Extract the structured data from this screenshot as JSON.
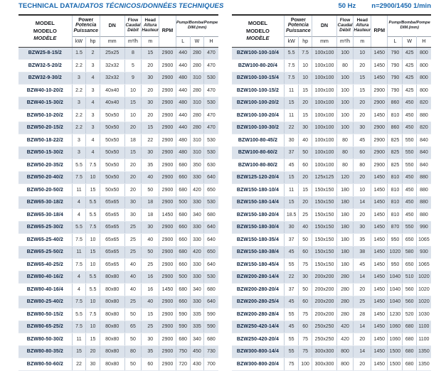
{
  "title": {
    "main": "TECHNICAL DATA/",
    "italic": "DATOS TÉCNICOS/DONNÉES TECHNIQUES"
  },
  "top_right": {
    "frequency": "50 Hz",
    "speed": "n=2900/1450 1/min"
  },
  "colors": {
    "accent_blue": "#1766ae",
    "row_shade": "#dbe2eb",
    "model_text": "#0f2440"
  },
  "header": {
    "model": [
      "MODEL",
      "MODELO",
      "MODÈLE"
    ],
    "power": [
      "Power",
      "Potencia",
      "Puissance"
    ],
    "dn": "DN",
    "flow": [
      "Flow",
      "Caudal",
      "Débit"
    ],
    "head_col": [
      "Head",
      "Altura",
      "Hauteur"
    ],
    "rpm": "RPM",
    "dim": [
      "Pump/Bomba/Pompe",
      "DIM.(mm)"
    ],
    "units": {
      "kw": "kW",
      "hp": "hp",
      "dn": "mm",
      "flow": "m³/h",
      "head": "m",
      "l": "L",
      "w": "W",
      "h": "H"
    }
  },
  "table_left": {
    "rows": [
      [
        "BZW25-8-15/2",
        "1.5",
        "2",
        "25x25",
        "8",
        "15",
        "2900",
        "440",
        "280",
        "470"
      ],
      [
        "BZW32-5-20/2",
        "2.2",
        "3",
        "32x32",
        "5",
        "20",
        "2900",
        "440",
        "280",
        "470"
      ],
      [
        "BZW32-9-30/2",
        "3",
        "4",
        "32x32",
        "9",
        "30",
        "2900",
        "480",
        "310",
        "530"
      ],
      [
        "BZW40-10-20/2",
        "2.2",
        "3",
        "40x40",
        "10",
        "20",
        "2900",
        "440",
        "280",
        "470"
      ],
      [
        "BZW40-15-30/2",
        "3",
        "4",
        "40x40",
        "15",
        "30",
        "2900",
        "480",
        "310",
        "530"
      ],
      [
        "BZW50-10-20/2",
        "2.2",
        "3",
        "50x50",
        "10",
        "20",
        "2900",
        "440",
        "280",
        "470"
      ],
      [
        "BZW50-20-15/2",
        "2.2",
        "3",
        "50x50",
        "20",
        "15",
        "2900",
        "440",
        "280",
        "470"
      ],
      [
        "BZW50-18-22/2",
        "3",
        "4",
        "50x50",
        "18",
        "22",
        "2900",
        "480",
        "310",
        "530"
      ],
      [
        "BZW50-15-30/2",
        "3",
        "4",
        "50x50",
        "15",
        "30",
        "2900",
        "480",
        "310",
        "530"
      ],
      [
        "BZW50-20-35/2",
        "5.5",
        "7.5",
        "50x50",
        "20",
        "35",
        "2900",
        "680",
        "350",
        "630"
      ],
      [
        "BZW50-20-40/2",
        "7.5",
        "10",
        "50x50",
        "20",
        "40",
        "2900",
        "660",
        "330",
        "640"
      ],
      [
        "BZW50-20-50/2",
        "11",
        "15",
        "50x50",
        "20",
        "50",
        "2900",
        "680",
        "420",
        "650"
      ],
      [
        "BZW65-30-18/2",
        "4",
        "5.5",
        "65x65",
        "30",
        "18",
        "2900",
        "500",
        "330",
        "530"
      ],
      [
        "BZW65-30-18/4",
        "4",
        "5.5",
        "65x65",
        "30",
        "18",
        "1450",
        "680",
        "340",
        "680"
      ],
      [
        "BZW65-25-30/2",
        "5.5",
        "7.5",
        "65x65",
        "25",
        "30",
        "2900",
        "660",
        "330",
        "640"
      ],
      [
        "BZW65-25-40/2",
        "7.5",
        "10",
        "65x65",
        "25",
        "40",
        "2900",
        "660",
        "330",
        "640"
      ],
      [
        "BZW65-25-50/2",
        "11",
        "15",
        "65x65",
        "25",
        "50",
        "2900",
        "680",
        "420",
        "650"
      ],
      [
        "BZW65-40-25/2",
        "7.5",
        "10",
        "65x65",
        "40",
        "25",
        "2900",
        "660",
        "330",
        "640"
      ],
      [
        "BZW80-40-16/2",
        "4",
        "5.5",
        "80x80",
        "40",
        "16",
        "2900",
        "500",
        "330",
        "530"
      ],
      [
        "BZW80-40-16/4",
        "4",
        "5.5",
        "80x80",
        "40",
        "16",
        "1450",
        "680",
        "340",
        "680"
      ],
      [
        "BZW80-25-40/2",
        "7.5",
        "10",
        "80x80",
        "25",
        "40",
        "2900",
        "660",
        "330",
        "640"
      ],
      [
        "BZW80-50-15/2",
        "5.5",
        "7.5",
        "80x80",
        "50",
        "15",
        "2900",
        "590",
        "335",
        "590"
      ],
      [
        "BZW80-65-25/2",
        "7.5",
        "10",
        "80x80",
        "65",
        "25",
        "2900",
        "590",
        "335",
        "590"
      ],
      [
        "BZW80-50-30/2",
        "11",
        "15",
        "80x80",
        "50",
        "30",
        "2900",
        "680",
        "340",
        "680"
      ],
      [
        "BZW80-80-35/2",
        "15",
        "20",
        "80x80",
        "80",
        "35",
        "2900",
        "750",
        "450",
        "730"
      ],
      [
        "BZW80-50-60/2",
        "22",
        "30",
        "80x80",
        "50",
        "60",
        "2900",
        "720",
        "430",
        "700"
      ]
    ]
  },
  "table_right": {
    "rows": [
      [
        "BZW100-100-10/4",
        "5.5",
        "7.5",
        "100x100",
        "100",
        "10",
        "1450",
        "790",
        "425",
        "800"
      ],
      [
        "BZW100-80-20/4",
        "7.5",
        "10",
        "100x100",
        "80",
        "20",
        "1450",
        "790",
        "425",
        "800"
      ],
      [
        "BZW100-100-15/4",
        "7.5",
        "10",
        "100x100",
        "100",
        "15",
        "1450",
        "790",
        "425",
        "800"
      ],
      [
        "BZW100-100-15/2",
        "11",
        "15",
        "100x100",
        "100",
        "15",
        "2900",
        "790",
        "425",
        "800"
      ],
      [
        "BZW100-100-20/2",
        "15",
        "20",
        "100x100",
        "100",
        "20",
        "2900",
        "860",
        "450",
        "820"
      ],
      [
        "BZW100-100-20/4",
        "11",
        "15",
        "100x100",
        "100",
        "20",
        "1450",
        "810",
        "450",
        "880"
      ],
      [
        "BZW100-100-30/2",
        "22",
        "30",
        "100x100",
        "100",
        "30",
        "2900",
        "860",
        "450",
        "820"
      ],
      [
        "BZW100-80-45/2",
        "30",
        "40",
        "100x100",
        "80",
        "45",
        "2900",
        "825",
        "550",
        "840"
      ],
      [
        "BZW100-80-60/2",
        "37",
        "50",
        "100x100",
        "80",
        "60",
        "2900",
        "825",
        "550",
        "840"
      ],
      [
        "BZW100-80-80/2",
        "45",
        "60",
        "100x100",
        "80",
        "80",
        "2900",
        "825",
        "550",
        "840"
      ],
      [
        "BZW125-120-20/4",
        "15",
        "20",
        "125x125",
        "120",
        "20",
        "1450",
        "810",
        "450",
        "880"
      ],
      [
        "BZW150-180-10/4",
        "11",
        "15",
        "150x150",
        "180",
        "10",
        "1450",
        "810",
        "450",
        "880"
      ],
      [
        "BZW150-180-14/4",
        "15",
        "20",
        "150x150",
        "180",
        "14",
        "1450",
        "810",
        "450",
        "880"
      ],
      [
        "BZW150-180-20/4",
        "18.5",
        "25",
        "150x150",
        "180",
        "20",
        "1450",
        "810",
        "450",
        "880"
      ],
      [
        "BZW150-180-30/4",
        "30",
        "40",
        "150x150",
        "180",
        "30",
        "1450",
        "870",
        "550",
        "990"
      ],
      [
        "BZW150-180-35/4",
        "37",
        "50",
        "150x150",
        "180",
        "35",
        "1450",
        "950",
        "650",
        "1065"
      ],
      [
        "BZW150-180-38/4",
        "45",
        "60",
        "150x150",
        "180",
        "38",
        "1450",
        "1020",
        "580",
        "930"
      ],
      [
        "BZW150-180-45/4",
        "55",
        "75",
        "150x150",
        "180",
        "45",
        "1450",
        "950",
        "650",
        "1065"
      ],
      [
        "BZW200-280-14/4",
        "22",
        "30",
        "200x200",
        "280",
        "14",
        "1450",
        "1040",
        "510",
        "1020"
      ],
      [
        "BZW200-280-20/4",
        "37",
        "50",
        "200x200",
        "280",
        "20",
        "1450",
        "1040",
        "560",
        "1020"
      ],
      [
        "BZW200-280-25/4",
        "45",
        "60",
        "200x200",
        "280",
        "25",
        "1450",
        "1040",
        "560",
        "1020"
      ],
      [
        "BZW200-280-28/4",
        "55",
        "75",
        "200x200",
        "280",
        "28",
        "1450",
        "1230",
        "520",
        "1030"
      ],
      [
        "BZW250-420-14/4",
        "45",
        "60",
        "250x250",
        "420",
        "14",
        "1450",
        "1060",
        "680",
        "1100"
      ],
      [
        "BZW250-420-20/4",
        "55",
        "75",
        "250x250",
        "420",
        "20",
        "1450",
        "1060",
        "680",
        "1100"
      ],
      [
        "BZW300-800-14/4",
        "55",
        "75",
        "300x300",
        "800",
        "14",
        "1450",
        "1500",
        "680",
        "1350"
      ],
      [
        "BZW300-800-20/4",
        "75",
        "100",
        "300x300",
        "800",
        "20",
        "1450",
        "1500",
        "680",
        "1350"
      ]
    ]
  }
}
